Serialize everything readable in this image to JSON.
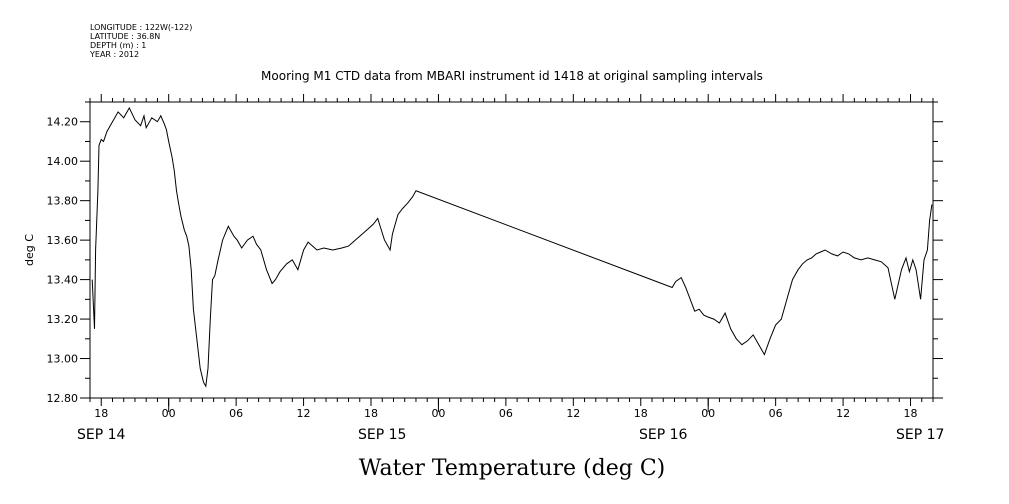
{
  "header": {
    "meta_lines": [
      "LONGITUDE : 122W(-122)",
      "LATITUDE : 36.8N",
      "DEPTH (m) : 1",
      "YEAR : 2012"
    ]
  },
  "chart_data": {
    "type": "line",
    "title": "Mooring M1 CTD data from MBARI instrument id 1418 at original sampling intervals",
    "xlabel": "Water Temperature (deg C)",
    "ylabel": "deg C",
    "ylim": [
      12.8,
      14.3
    ],
    "yticks": [
      "12.80",
      "13.00",
      "13.20",
      "13.40",
      "13.60",
      "13.80",
      "14.00",
      "14.20"
    ],
    "xlim_hours": [
      -7,
      68
    ],
    "hour_ticks": [
      "18",
      "00",
      "06",
      "12",
      "18",
      "00",
      "06",
      "12",
      "18",
      "00",
      "06",
      "12",
      "18"
    ],
    "date_labels": [
      "SEP 14",
      "SEP 15",
      "SEP 16",
      "SEP 17"
    ],
    "grid": false,
    "series": [
      {
        "name": "",
        "x": [
          -6.8,
          -6.6,
          -6.5,
          -6.3,
          -6.2,
          -6.0,
          -5.8,
          -5.5,
          -5.0,
          -4.5,
          -4.0,
          -3.5,
          -3.0,
          -2.5,
          -2.2,
          -2.0,
          -1.5,
          -1.0,
          -0.7,
          -0.4,
          -0.2,
          0.0,
          0.3,
          0.5,
          0.7,
          0.9,
          1.1,
          1.4,
          1.6,
          1.8,
          2.0,
          2.2,
          2.5,
          2.8,
          3.1,
          3.3,
          3.5,
          3.7,
          3.9,
          4.1,
          4.4,
          4.8,
          5.3,
          5.8,
          6.1,
          6.5,
          7.0,
          7.5,
          7.8,
          8.2,
          8.7,
          9.2,
          9.5,
          9.9,
          10.2,
          10.5,
          11.0,
          11.5,
          12.0,
          12.4,
          12.8,
          13.2,
          13.8,
          14.6,
          15.4,
          16.0,
          16.6,
          17.2,
          17.8,
          18.2,
          18.6,
          19.2,
          19.7,
          19.9,
          20.1,
          20.4,
          20.8,
          21.3,
          21.7,
          22.0,
          44.8,
          45.1,
          45.6,
          46.0,
          46.4,
          46.8,
          47.2,
          47.6,
          48.0,
          48.5,
          49.0,
          49.5,
          50.0,
          50.5,
          51.0,
          51.5,
          52.0,
          52.5,
          53.0,
          53.5,
          54.0,
          54.5,
          55.0,
          55.5,
          56.0,
          56.4,
          56.8,
          57.2,
          57.6,
          58.0,
          58.4,
          59.0,
          59.5,
          60.0,
          60.5,
          61.0,
          61.6,
          62.2,
          62.8,
          63.4,
          64.0,
          64.6,
          65.2,
          65.6,
          65.9,
          66.2,
          66.5,
          66.9,
          67.2,
          67.5,
          67.7,
          67.9
        ],
        "values": [
          13.4,
          13.15,
          13.55,
          13.85,
          14.08,
          14.11,
          14.1,
          14.15,
          14.2,
          14.25,
          14.22,
          14.27,
          14.21,
          14.18,
          14.23,
          14.17,
          14.22,
          14.2,
          14.23,
          14.19,
          14.16,
          14.1,
          14.02,
          13.95,
          13.85,
          13.78,
          13.72,
          13.65,
          13.62,
          13.57,
          13.45,
          13.25,
          13.1,
          12.95,
          12.88,
          12.86,
          12.95,
          13.2,
          13.4,
          13.42,
          13.5,
          13.6,
          13.67,
          13.62,
          13.6,
          13.56,
          13.6,
          13.62,
          13.58,
          13.55,
          13.45,
          13.38,
          13.4,
          13.44,
          13.46,
          13.48,
          13.5,
          13.45,
          13.55,
          13.59,
          13.57,
          13.55,
          13.56,
          13.55,
          13.56,
          13.57,
          13.6,
          13.63,
          13.66,
          13.68,
          13.71,
          13.6,
          13.55,
          13.63,
          13.67,
          13.73,
          13.76,
          13.79,
          13.82,
          13.85,
          13.36,
          13.39,
          13.41,
          13.36,
          13.3,
          13.24,
          13.25,
          13.22,
          13.21,
          13.2,
          13.18,
          13.23,
          13.15,
          13.1,
          13.07,
          13.09,
          13.12,
          13.07,
          13.02,
          13.1,
          13.17,
          13.2,
          13.3,
          13.4,
          13.45,
          13.48,
          13.5,
          13.51,
          13.53,
          13.54,
          13.55,
          13.53,
          13.52,
          13.54,
          13.53,
          13.51,
          13.5,
          13.51,
          13.5,
          13.49,
          13.46,
          13.3,
          13.45,
          13.51,
          13.44,
          13.5,
          13.45,
          13.3,
          13.5,
          13.55,
          13.7,
          13.78
        ]
      }
    ]
  }
}
